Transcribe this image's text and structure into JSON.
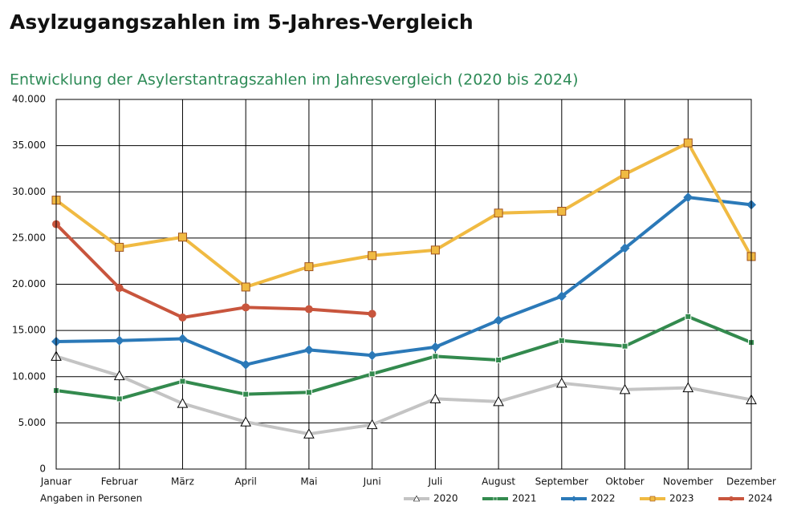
{
  "title": "Asylzugangszahlen im 5-Jahres-Vergleich",
  "chart_data": {
    "type": "line",
    "title": "Entwicklung der Asylerstantragszahlen im Jahresvergleich (2020 bis 2024)",
    "note": "Angaben in Personen",
    "categories": [
      "Januar",
      "Februar",
      "März",
      "April",
      "Mai",
      "Juni",
      "Juli",
      "August",
      "September",
      "Oktober",
      "November",
      "Dezember"
    ],
    "ylim": [
      0,
      40000
    ],
    "yticks": [
      0,
      {
        "value": 5000,
        "label": "5.000"
      },
      {
        "value": 10000,
        "label": "10.000"
      },
      {
        "value": 15000,
        "label": "15.000"
      },
      {
        "value": 20000,
        "label": "20.000"
      },
      {
        "value": 25000,
        "label": "25.000"
      },
      {
        "value": 30000,
        "label": "30.000"
      },
      {
        "value": 35000,
        "label": "35.000"
      },
      {
        "value": 40000,
        "label": "40.000"
      }
    ],
    "grid": true,
    "legend": "bottom-right",
    "series": [
      {
        "name": "2020",
        "color": "#c4c4c4",
        "marker": "triangle",
        "values": [
          12200,
          10100,
          7100,
          5100,
          3800,
          4800,
          7600,
          7300,
          9300,
          8600,
          8800,
          7500
        ]
      },
      {
        "name": "2021",
        "color": "#338a4e",
        "marker": "square",
        "values": [
          8500,
          7600,
          9500,
          8100,
          8300,
          10300,
          12200,
          11800,
          13900,
          13300,
          16500,
          13700
        ]
      },
      {
        "name": "2022",
        "color": "#2b79b8",
        "marker": "diamond",
        "values": [
          13800,
          13900,
          14100,
          11300,
          12900,
          12300,
          13200,
          16100,
          18700,
          23900,
          29400,
          28600
        ]
      },
      {
        "name": "2023",
        "color": "#f0ba42",
        "marker": "bigsquare",
        "values": [
          29100,
          24000,
          25100,
          19700,
          21900,
          23100,
          23700,
          27700,
          27900,
          31900,
          35300,
          23000
        ]
      },
      {
        "name": "2024",
        "color": "#c8553d",
        "marker": "circle",
        "values": [
          26500,
          19600,
          16400,
          17500,
          17300,
          16800,
          null,
          null,
          null,
          null,
          null,
          null
        ]
      }
    ]
  }
}
